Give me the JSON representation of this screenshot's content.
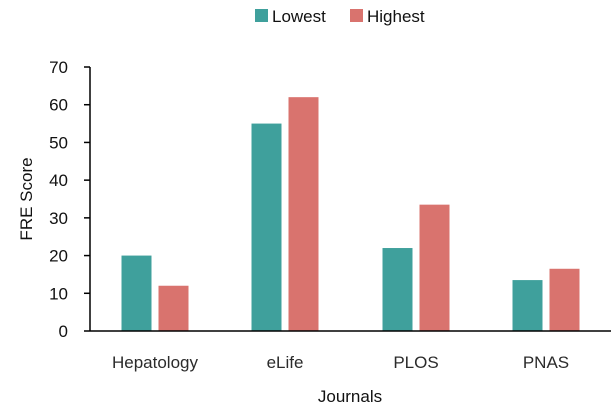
{
  "chart_data": {
    "type": "bar",
    "categories": [
      "Hepatology",
      "eLife",
      "PLOS",
      "PNAS"
    ],
    "series": [
      {
        "name": "Lowest",
        "values": [
          20,
          55,
          22,
          13.5
        ],
        "color": "#3fa09c"
      },
      {
        "name": "Highest",
        "values": [
          12,
          62,
          33.5,
          16.5
        ],
        "color": "#d9736e"
      }
    ],
    "title": "",
    "xlabel": "Journals",
    "ylabel": "FRE Score",
    "ylim": [
      0,
      70
    ],
    "yticks": [
      0,
      10,
      20,
      30,
      40,
      50,
      60,
      70
    ],
    "grid": false,
    "legend": "top-center"
  }
}
